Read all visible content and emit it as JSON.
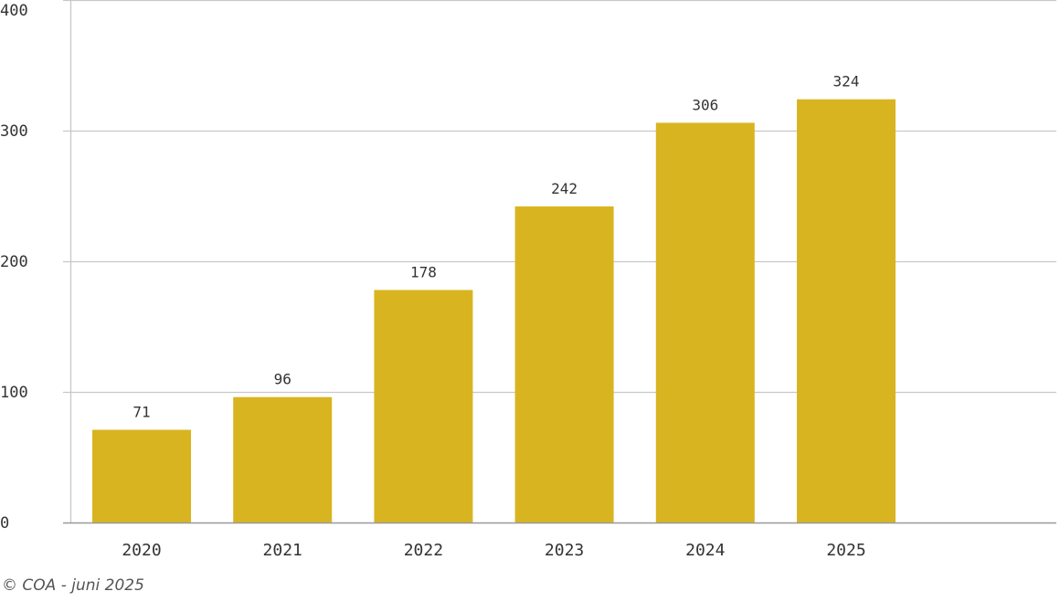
{
  "chart_data": {
    "type": "bar",
    "categories": [
      "2020",
      "2021",
      "2022",
      "2023",
      "2024",
      "2025"
    ],
    "values": [
      71,
      96,
      178,
      242,
      306,
      324
    ],
    "value_labels": [
      "71",
      "96",
      "178",
      "242",
      "306",
      "324"
    ],
    "ylim": [
      0,
      400
    ],
    "yticks": [
      "0",
      "100",
      "200",
      "300",
      "400"
    ],
    "grid": true,
    "bar_color": "#D9B421",
    "gridline_color": "#c8c8c8",
    "axis_color": "#999999"
  },
  "footer": {
    "credit": "© COA - juni 2025"
  }
}
